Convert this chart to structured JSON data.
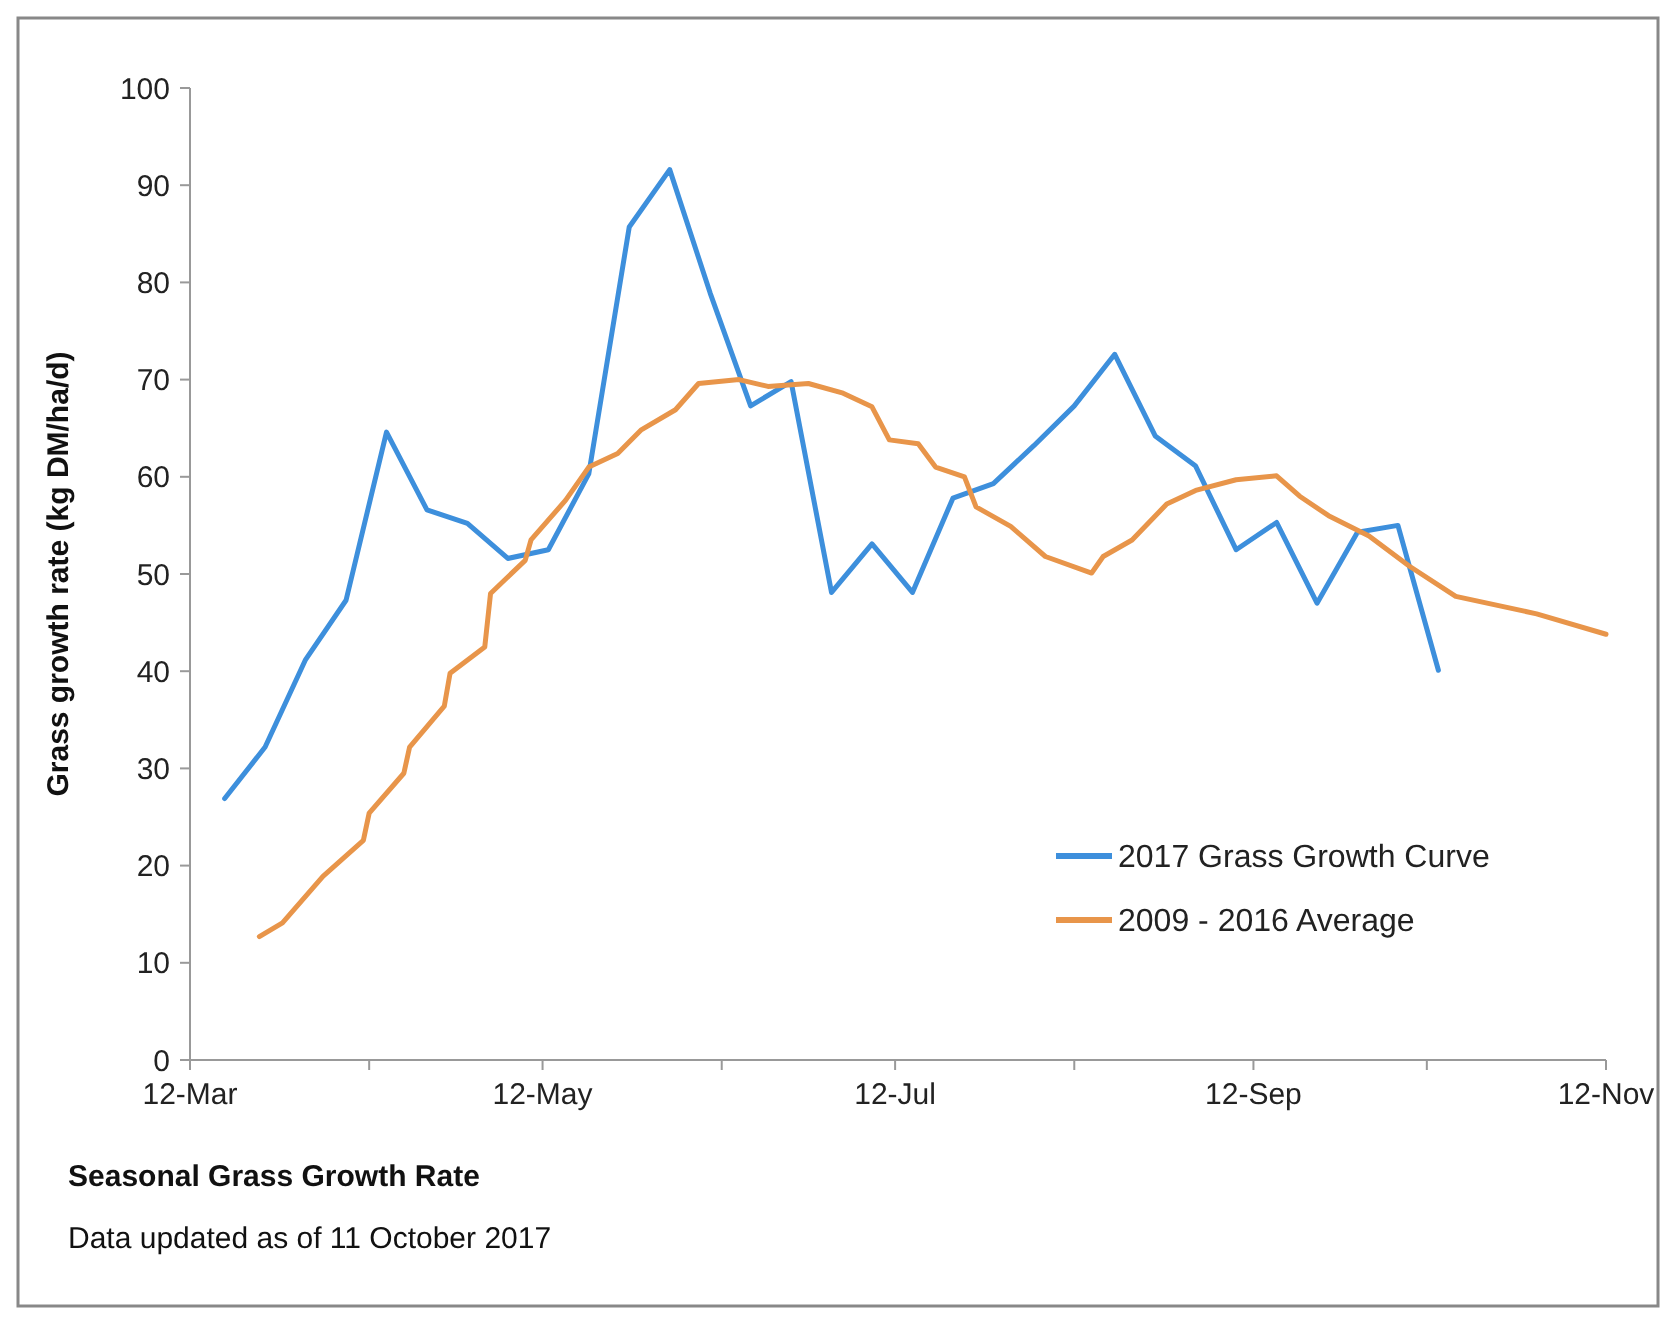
{
  "chart_data": {
    "type": "line",
    "title": "Seasonal Grass Growth Rate",
    "ylabel": "Grass growth rate (kg DM/ha/d)",
    "annotations": [
      "Data updated as of 11 October 2017"
    ],
    "xlim": [
      "2017-03-12",
      "2017-11-12"
    ],
    "xticks": [
      {
        "value": "2017-03-12",
        "label": "12-Mar"
      },
      {
        "value": "2017-04-12",
        "label": null
      },
      {
        "value": "2017-05-12",
        "label": "12-May"
      },
      {
        "value": "2017-06-12",
        "label": null
      },
      {
        "value": "2017-07-12",
        "label": "12-Jul"
      },
      {
        "value": "2017-08-12",
        "label": null
      },
      {
        "value": "2017-09-12",
        "label": "12-Sep"
      },
      {
        "value": "2017-10-12",
        "label": null
      },
      {
        "value": "2017-11-12",
        "label": "12-Nov"
      }
    ],
    "ylim": [
      0,
      100
    ],
    "yticks": [
      0,
      10,
      20,
      30,
      40,
      50,
      60,
      70,
      80,
      90,
      100
    ],
    "grid": false,
    "legend": "bottom right",
    "series": [
      {
        "name": "2017 Grass Growth Curve",
        "color": "#3d8fdc",
        "x": [
          "2017-03-18",
          "2017-03-25",
          "2017-04-01",
          "2017-04-08",
          "2017-04-15",
          "2017-04-22",
          "2017-04-29",
          "2017-05-06",
          "2017-05-13",
          "2017-05-20",
          "2017-05-27",
          "2017-06-03",
          "2017-06-10",
          "2017-06-17",
          "2017-06-24",
          "2017-07-01",
          "2017-07-08",
          "2017-07-15",
          "2017-07-22",
          "2017-07-29",
          "2017-08-05",
          "2017-08-12",
          "2017-08-19",
          "2017-08-26",
          "2017-09-02",
          "2017-09-09",
          "2017-09-16",
          "2017-09-23",
          "2017-09-30",
          "2017-10-07",
          "2017-10-14"
        ],
        "values": [
          26.9,
          32.2,
          41.2,
          47.3,
          64.6,
          56.6,
          55.2,
          51.6,
          52.5,
          60.3,
          85.7,
          91.6,
          78.9,
          67.3,
          69.8,
          48.1,
          53.1,
          48.1,
          57.8,
          59.3,
          63.2,
          67.3,
          72.6,
          64.2,
          61.1,
          52.5,
          55.3,
          47.0,
          54.3,
          55.0,
          40.1
        ]
      },
      {
        "name": "2009 - 2016 Average",
        "color": "#e8954a",
        "x": [
          "2017-03-24",
          "2017-03-28",
          "2017-04-04",
          "2017-04-11",
          "2017-04-12",
          "2017-04-18",
          "2017-04-19",
          "2017-04-25",
          "2017-04-26",
          "2017-05-02",
          "2017-05-03",
          "2017-05-09",
          "2017-05-10",
          "2017-05-16",
          "2017-05-20",
          "2017-05-25",
          "2017-05-29",
          "2017-06-04",
          "2017-06-08",
          "2017-06-15",
          "2017-06-20",
          "2017-06-27",
          "2017-07-03",
          "2017-07-08",
          "2017-07-11",
          "2017-07-16",
          "2017-07-19",
          "2017-07-24",
          "2017-07-26",
          "2017-08-01",
          "2017-08-07",
          "2017-08-15",
          "2017-08-17",
          "2017-08-22",
          "2017-08-28",
          "2017-09-02",
          "2017-09-09",
          "2017-09-16",
          "2017-09-20",
          "2017-09-25",
          "2017-10-02",
          "2017-10-09",
          "2017-10-17",
          "2017-10-31",
          "2017-11-12"
        ],
        "values": [
          12.7,
          14.1,
          18.9,
          22.6,
          25.4,
          29.5,
          32.2,
          36.4,
          39.8,
          42.5,
          48.0,
          51.4,
          53.5,
          57.6,
          61.0,
          62.4,
          64.8,
          66.9,
          69.6,
          70.0,
          69.3,
          69.6,
          68.6,
          67.2,
          63.8,
          63.4,
          61.0,
          60.0,
          56.9,
          54.9,
          51.8,
          50.1,
          51.8,
          53.5,
          57.2,
          58.6,
          59.7,
          60.1,
          58.0,
          56.0,
          53.9,
          50.8,
          47.7,
          45.9,
          43.8
        ]
      }
    ]
  }
}
